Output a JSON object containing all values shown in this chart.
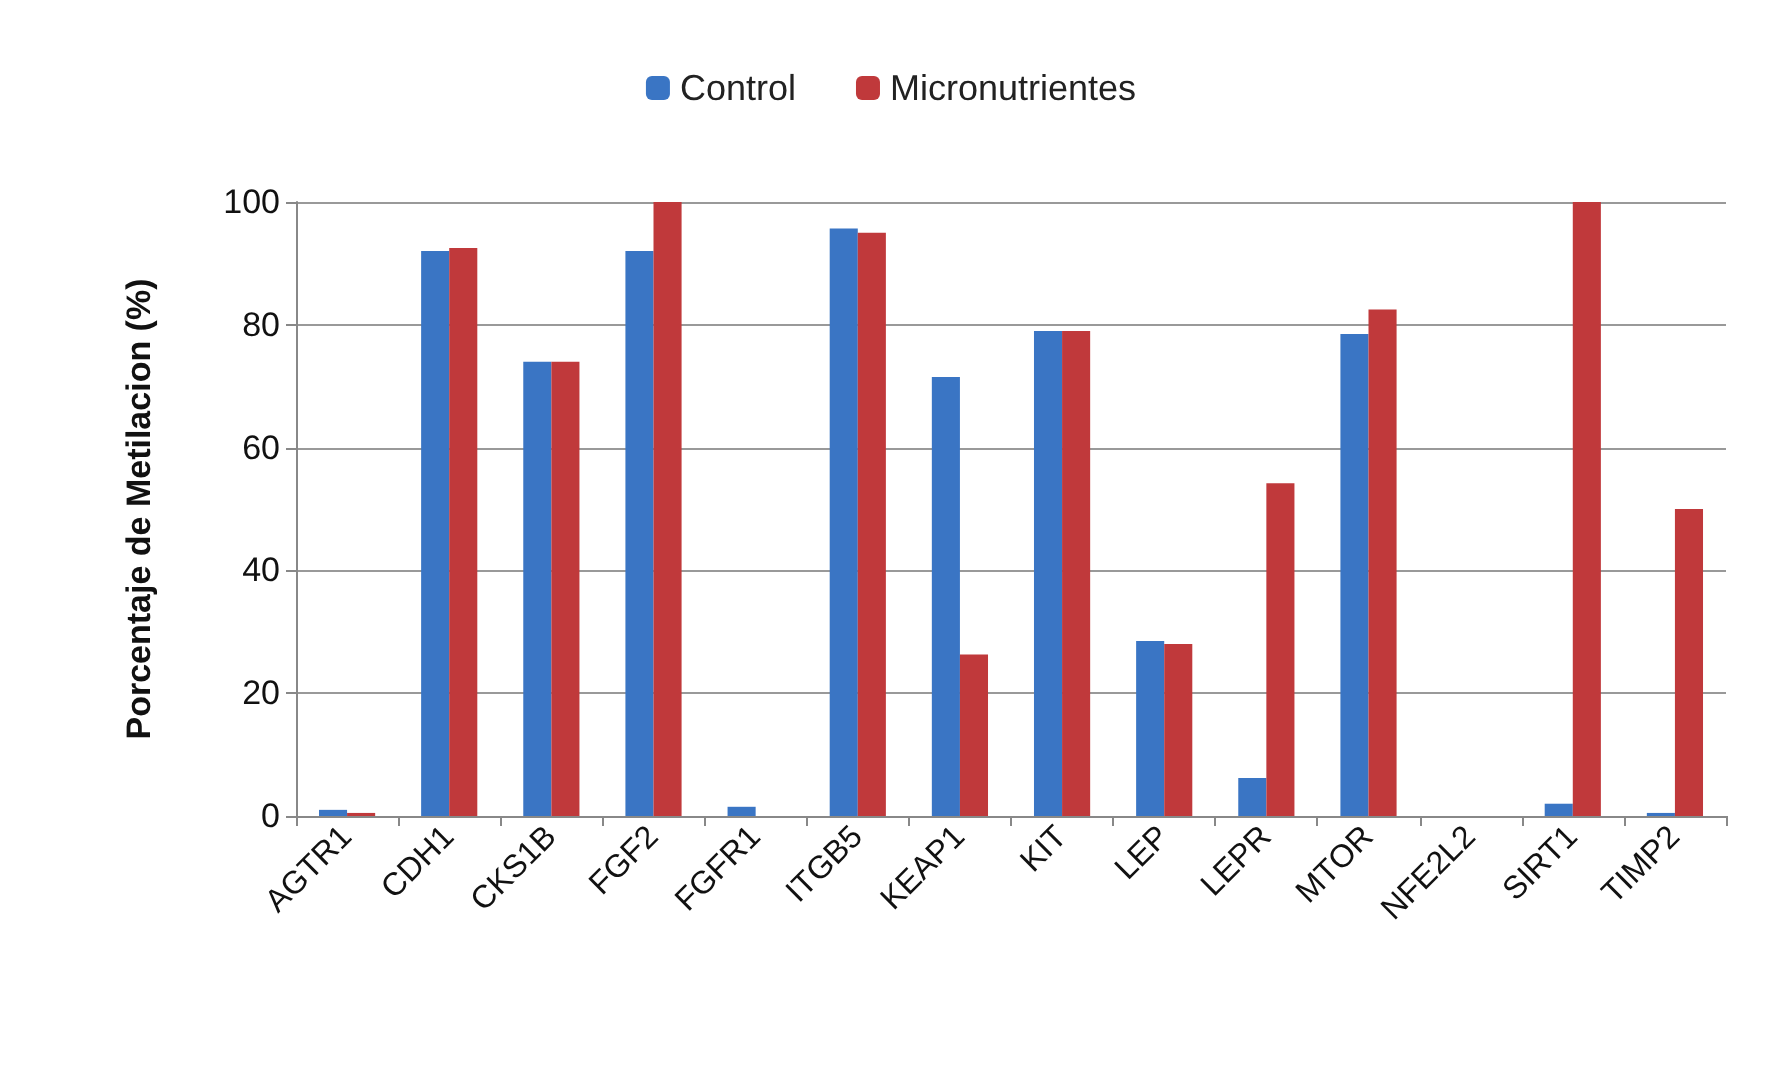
{
  "chart_data": {
    "type": "bar",
    "ylabel": "Porcentaje de Metilacion (%)",
    "categories": [
      "AGTR1",
      "CDH1",
      "CKS1B",
      "FGF2",
      "FGFR1",
      "ITGB5",
      "KEAP1",
      "KIT",
      "LEP",
      "LEPR",
      "MTOR",
      "NFE2L2",
      "SIRT1",
      "TIMP2"
    ],
    "series": [
      {
        "name": "Control",
        "color": "#3a75c4",
        "values": [
          1,
          92,
          74,
          92,
          1.5,
          95.7,
          71.5,
          79,
          28.5,
          6.2,
          78.5,
          0,
          2,
          0.5
        ]
      },
      {
        "name": "Micronutrientes",
        "color": "#c0393b",
        "values": [
          0.5,
          92.5,
          74,
          100,
          0,
          95,
          26.3,
          79,
          28,
          54.2,
          82.5,
          0,
          100,
          50
        ]
      }
    ],
    "ylim": [
      0,
      100
    ],
    "yticks": [
      0,
      20,
      40,
      60,
      80,
      100
    ],
    "grid": "y",
    "legend": "top"
  }
}
